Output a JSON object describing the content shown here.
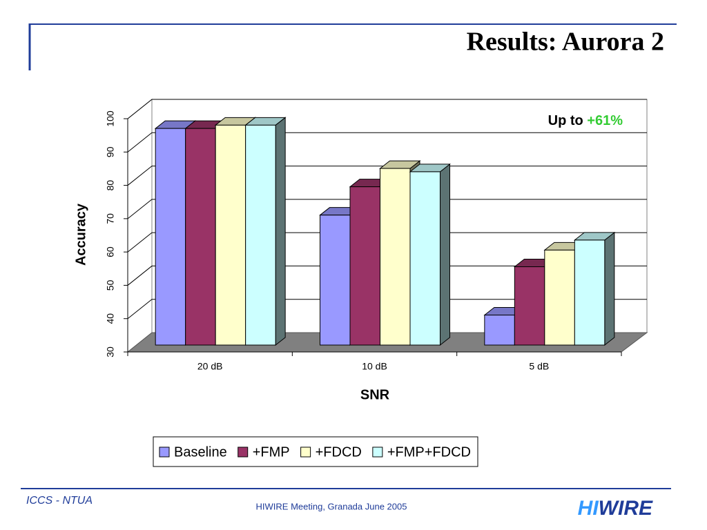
{
  "slide": {
    "title": "Results: Aurora 2",
    "footer_left": "ICCS - NTUA",
    "footer_center": "HIWIRE Meeting, Granada June 2005",
    "logo": [
      "HI",
      "WIRE"
    ]
  },
  "chart_data": {
    "type": "bar3d",
    "annotation": [
      "Up to",
      "+61%"
    ],
    "x_label": "SNR",
    "y_label": "Accuracy",
    "categories": [
      "20 dB",
      "10 dB",
      "5 dB"
    ],
    "series": [
      {
        "name": "Baseline",
        "color": "#9999ff",
        "values": [
          95,
          69,
          39
        ]
      },
      {
        "name": "+FMP",
        "color": "#993366",
        "values": [
          95,
          77.5,
          53.5
        ]
      },
      {
        "name": "+FDCD",
        "color": "#ffffcc",
        "values": [
          96,
          83,
          58.5
        ]
      },
      {
        "name": "+FMP+FDCD",
        "color": "#ccffff",
        "values": [
          96,
          82,
          61.5
        ]
      }
    ],
    "ylim": [
      30,
      100
    ],
    "yticks": [
      30,
      40,
      50,
      60,
      70,
      80,
      90,
      100
    ],
    "grid": true,
    "legend": "bottom"
  }
}
